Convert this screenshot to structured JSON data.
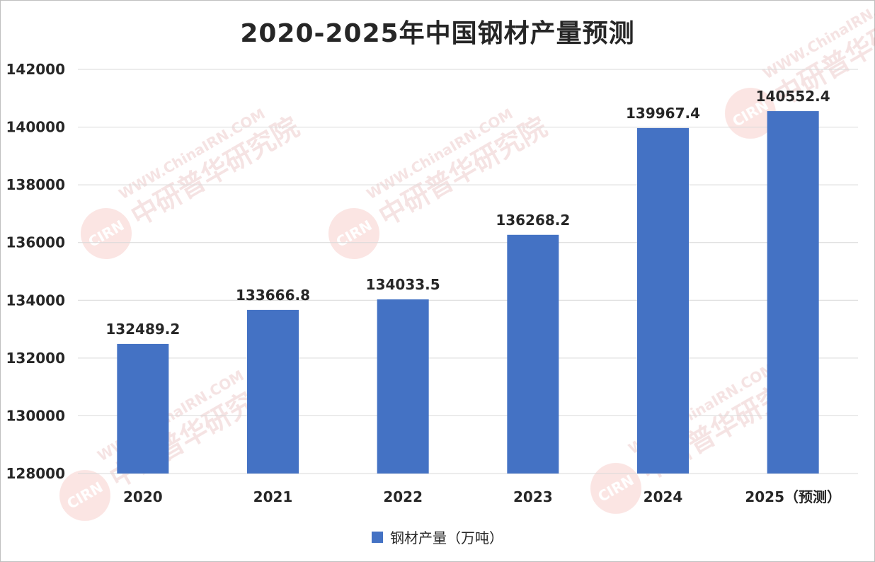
{
  "colors": {
    "bar": "#4472c4",
    "grid": "#d9d9d9",
    "text": "#262626"
  },
  "chart_data": {
    "type": "bar",
    "title": "2020-2025年中国钢材产量预测",
    "categories": [
      "2020",
      "2021",
      "2022",
      "2023",
      "2024",
      "2025（预测）"
    ],
    "series": [
      {
        "name": "钢材产量（万吨）",
        "values": [
          132489.2,
          133666.8,
          134033.5,
          136268.2,
          139967.4,
          140552.4
        ]
      }
    ],
    "value_labels": [
      "132489.2",
      "133666.8",
      "134033.5",
      "136268.2",
      "139967.4",
      "140552.4"
    ],
    "ylim": [
      128000,
      142000
    ],
    "yticks": [
      128000,
      130000,
      132000,
      134000,
      136000,
      138000,
      140000,
      142000
    ],
    "ytick_labels": [
      "128000",
      "130000",
      "132000",
      "134000",
      "136000",
      "138000",
      "140000",
      "142000"
    ],
    "grid": true,
    "legend": "bottom-center",
    "xlabel": "",
    "ylabel": ""
  },
  "watermark": {
    "site": "WWW.ChinaIRN.COM",
    "name": "中研普华研究院",
    "logo": "CIRN"
  }
}
